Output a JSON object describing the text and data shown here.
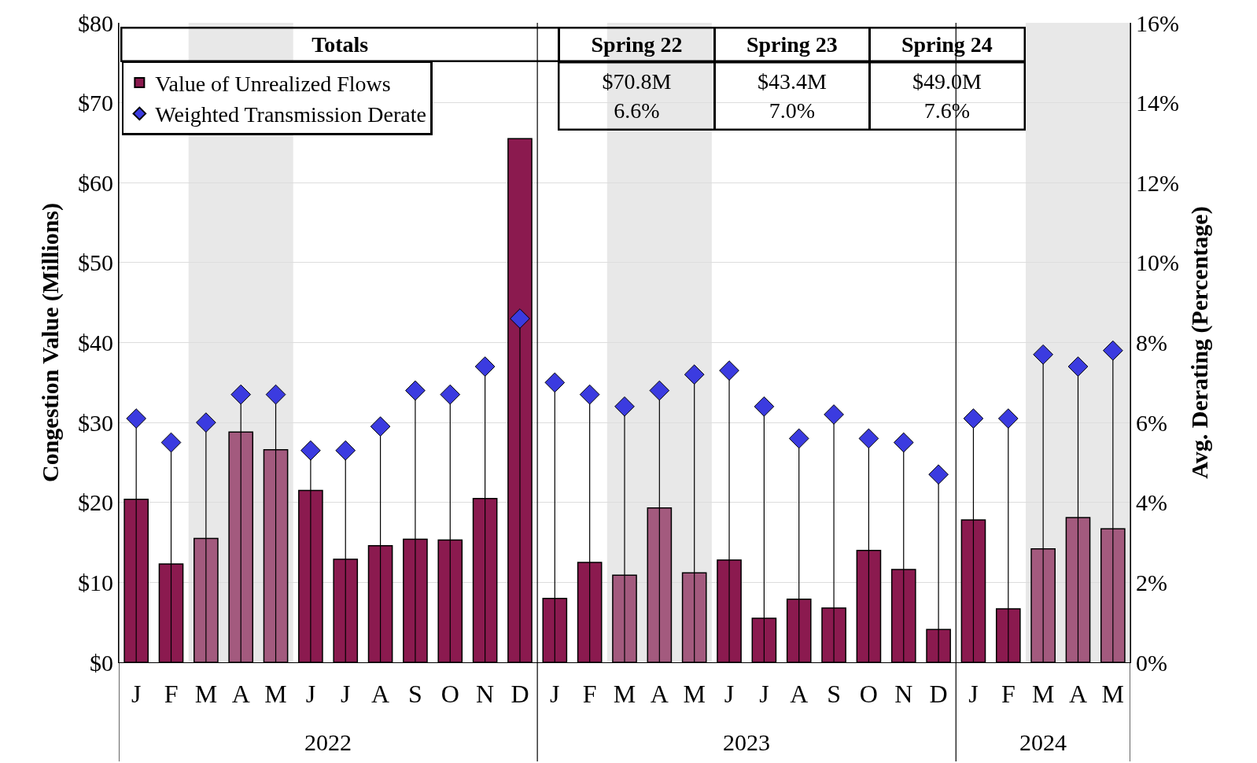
{
  "chart_data": {
    "type": "bar",
    "ylabel": "Congestion Value (Millions)",
    "y2label": "Avg. Derating (Percentage)",
    "categories": [
      "J",
      "F",
      "M",
      "A",
      "M",
      "J",
      "J",
      "A",
      "S",
      "O",
      "N",
      "D",
      "J",
      "F",
      "M",
      "A",
      "M",
      "J",
      "J",
      "A",
      "S",
      "O",
      "N",
      "D",
      "J",
      "F",
      "M",
      "A",
      "M"
    ],
    "ylim": [
      0,
      80
    ],
    "yticks": [
      {
        "value": 0,
        "label": "$0"
      },
      {
        "value": 10,
        "label": "$10"
      },
      {
        "value": 20,
        "label": "$20"
      },
      {
        "value": 30,
        "label": "$30"
      },
      {
        "value": 40,
        "label": "$40"
      },
      {
        "value": 50,
        "label": "$50"
      },
      {
        "value": 60,
        "label": "$60"
      },
      {
        "value": 70,
        "label": "$70"
      },
      {
        "value": 80,
        "label": "$80"
      }
    ],
    "y2lim": [
      0,
      16
    ],
    "y2ticks": [
      {
        "value": 0,
        "label": "0%"
      },
      {
        "value": 2,
        "label": "2%"
      },
      {
        "value": 4,
        "label": "4%"
      },
      {
        "value": 6,
        "label": "6%"
      },
      {
        "value": 8,
        "label": "8%"
      },
      {
        "value": 10,
        "label": "10%"
      },
      {
        "value": 12,
        "label": "12%"
      },
      {
        "value": 14,
        "label": "14%"
      },
      {
        "value": 16,
        "label": "16%"
      }
    ],
    "series": [
      {
        "name": "Value of Unrealized Flows",
        "color": "#8b1a4f",
        "colors": [
          "#8b1a4f",
          "#8b1a4f",
          "#a35a7e",
          "#a35a7e",
          "#a35a7e",
          "#8b1a4f",
          "#8b1a4f",
          "#8b1a4f",
          "#8b1a4f",
          "#8b1a4f",
          "#8b1a4f",
          "#8b1a4f",
          "#8b1a4f",
          "#8b1a4f",
          "#a35a7e",
          "#a35a7e",
          "#a35a7e",
          "#8b1a4f",
          "#8b1a4f",
          "#8b1a4f",
          "#8b1a4f",
          "#8b1a4f",
          "#8b1a4f",
          "#8b1a4f",
          "#8b1a4f",
          "#8b1a4f",
          "#a35a7e",
          "#a35a7e",
          "#a35a7e"
        ],
        "values": [
          20.4,
          12.3,
          15.5,
          28.8,
          26.6,
          21.5,
          12.9,
          14.6,
          15.4,
          15.3,
          20.5,
          65.5,
          8.0,
          12.5,
          10.9,
          19.3,
          11.2,
          12.8,
          5.5,
          7.9,
          6.8,
          14.0,
          11.6,
          4.1,
          17.8,
          6.7,
          14.2,
          18.1,
          16.7
        ]
      },
      {
        "name": "Weighted Transmission Derate",
        "type": "lollipop",
        "axis": "y2",
        "color": "#3b3be0",
        "marker": "diamond",
        "values": [
          6.1,
          5.5,
          6.0,
          6.7,
          6.7,
          5.3,
          5.3,
          5.9,
          6.8,
          6.7,
          7.4,
          8.6,
          7.0,
          6.7,
          6.4,
          6.8,
          7.2,
          7.3,
          6.4,
          5.6,
          6.2,
          5.6,
          5.5,
          4.7,
          6.1,
          6.1,
          7.7,
          7.4,
          7.8
        ]
      }
    ],
    "annotations": [
      "2022",
      "2023",
      "2024",
      "Totals",
      "Spring 22",
      "Spring 23",
      "Spring 24",
      "$70.8M",
      "$43.4M",
      "$49.0M",
      "6.6%",
      "7.0%",
      "7.6%"
    ],
    "grid": "y",
    "legend": "top left"
  }
}
